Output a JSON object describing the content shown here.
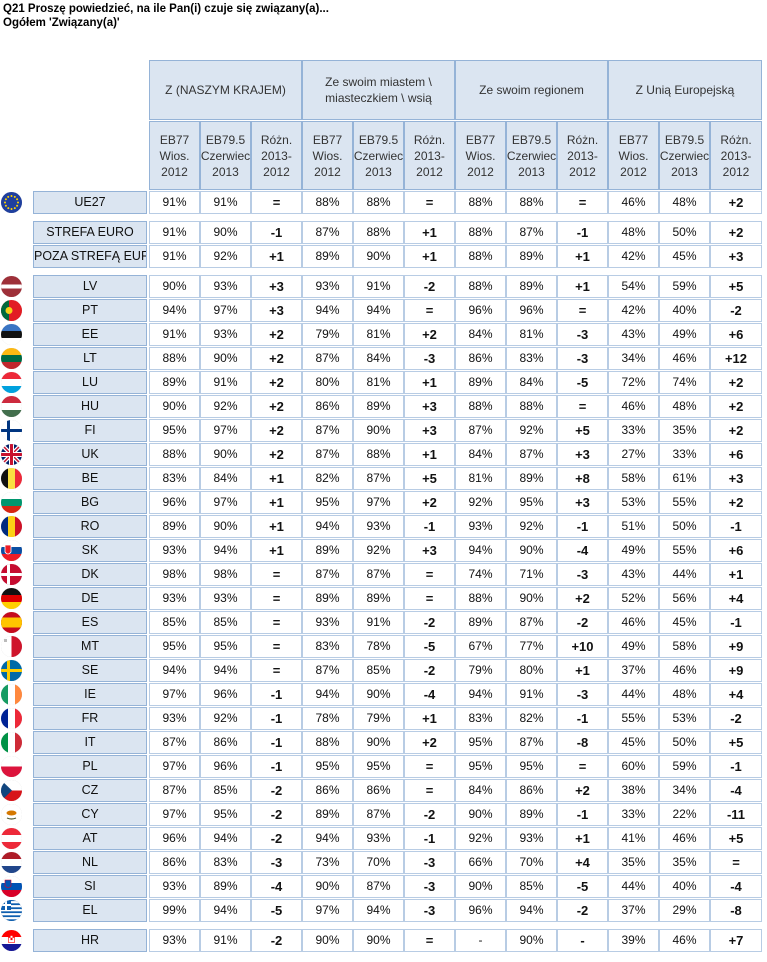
{
  "title": {
    "line1": "Q21 Proszę powiedzieć, na ile Pan(i) czuje się związany(a)...",
    "line2": "Ogółem 'Związany(a)'"
  },
  "groups": [
    {
      "label": "Z (NASZYM KRAJEM)"
    },
    {
      "label": "Ze swoim miastem \\ miasteczkiem \\ wsią"
    },
    {
      "label": "Ze swoim regionem"
    },
    {
      "label": "Z Unią Europejską"
    }
  ],
  "subheaders": [
    "EB77 Wios. 2012",
    "EB79.5 Czerwiec 2013",
    "Różn. 2013-2012"
  ],
  "rows": [
    {
      "label": "UE27",
      "flag": "eu",
      "v": [
        "91%",
        "91%",
        "=",
        "88%",
        "88%",
        "=",
        "88%",
        "88%",
        "=",
        "46%",
        "48%",
        "+2"
      ]
    },
    {
      "gap": true
    },
    {
      "label": "STREFA EURO",
      "flag": "",
      "v": [
        "91%",
        "90%",
        "-1",
        "87%",
        "88%",
        "+1",
        "88%",
        "87%",
        "-1",
        "48%",
        "50%",
        "+2"
      ]
    },
    {
      "label": "POZA STREFĄ EURO",
      "flag": "",
      "v": [
        "91%",
        "92%",
        "+1",
        "89%",
        "90%",
        "+1",
        "88%",
        "89%",
        "+1",
        "42%",
        "45%",
        "+3"
      ]
    },
    {
      "gap": true
    },
    {
      "label": "LV",
      "flag": "lv",
      "v": [
        "90%",
        "93%",
        "+3",
        "93%",
        "91%",
        "-2",
        "88%",
        "89%",
        "+1",
        "54%",
        "59%",
        "+5"
      ]
    },
    {
      "label": "PT",
      "flag": "pt",
      "v": [
        "94%",
        "97%",
        "+3",
        "94%",
        "94%",
        "=",
        "96%",
        "96%",
        "=",
        "42%",
        "40%",
        "-2"
      ]
    },
    {
      "label": "EE",
      "flag": "ee",
      "v": [
        "91%",
        "93%",
        "+2",
        "79%",
        "81%",
        "+2",
        "84%",
        "81%",
        "-3",
        "43%",
        "49%",
        "+6"
      ]
    },
    {
      "label": "LT",
      "flag": "lt",
      "v": [
        "88%",
        "90%",
        "+2",
        "87%",
        "84%",
        "-3",
        "86%",
        "83%",
        "-3",
        "34%",
        "46%",
        "+12"
      ]
    },
    {
      "label": "LU",
      "flag": "lu",
      "v": [
        "89%",
        "91%",
        "+2",
        "80%",
        "81%",
        "+1",
        "89%",
        "84%",
        "-5",
        "72%",
        "74%",
        "+2"
      ]
    },
    {
      "label": "HU",
      "flag": "hu",
      "v": [
        "90%",
        "92%",
        "+2",
        "86%",
        "89%",
        "+3",
        "88%",
        "88%",
        "=",
        "46%",
        "48%",
        "+2"
      ]
    },
    {
      "label": "FI",
      "flag": "fi",
      "v": [
        "95%",
        "97%",
        "+2",
        "87%",
        "90%",
        "+3",
        "87%",
        "92%",
        "+5",
        "33%",
        "35%",
        "+2"
      ]
    },
    {
      "label": "UK",
      "flag": "uk",
      "v": [
        "88%",
        "90%",
        "+2",
        "87%",
        "88%",
        "+1",
        "84%",
        "87%",
        "+3",
        "27%",
        "33%",
        "+6"
      ]
    },
    {
      "label": "BE",
      "flag": "be",
      "v": [
        "83%",
        "84%",
        "+1",
        "82%",
        "87%",
        "+5",
        "81%",
        "89%",
        "+8",
        "58%",
        "61%",
        "+3"
      ]
    },
    {
      "label": "BG",
      "flag": "bg",
      "v": [
        "96%",
        "97%",
        "+1",
        "95%",
        "97%",
        "+2",
        "92%",
        "95%",
        "+3",
        "53%",
        "55%",
        "+2"
      ]
    },
    {
      "label": "RO",
      "flag": "ro",
      "v": [
        "89%",
        "90%",
        "+1",
        "94%",
        "93%",
        "-1",
        "93%",
        "92%",
        "-1",
        "51%",
        "50%",
        "-1"
      ]
    },
    {
      "label": "SK",
      "flag": "sk",
      "v": [
        "93%",
        "94%",
        "+1",
        "89%",
        "92%",
        "+3",
        "94%",
        "90%",
        "-4",
        "49%",
        "55%",
        "+6"
      ]
    },
    {
      "label": "DK",
      "flag": "dk",
      "v": [
        "98%",
        "98%",
        "=",
        "87%",
        "87%",
        "=",
        "74%",
        "71%",
        "-3",
        "43%",
        "44%",
        "+1"
      ]
    },
    {
      "label": "DE",
      "flag": "de",
      "v": [
        "93%",
        "93%",
        "=",
        "89%",
        "89%",
        "=",
        "88%",
        "90%",
        "+2",
        "52%",
        "56%",
        "+4"
      ]
    },
    {
      "label": "ES",
      "flag": "es",
      "v": [
        "85%",
        "85%",
        "=",
        "93%",
        "91%",
        "-2",
        "89%",
        "87%",
        "-2",
        "46%",
        "45%",
        "-1"
      ]
    },
    {
      "label": "MT",
      "flag": "mt",
      "v": [
        "95%",
        "95%",
        "=",
        "83%",
        "78%",
        "-5",
        "67%",
        "77%",
        "+10",
        "49%",
        "58%",
        "+9"
      ]
    },
    {
      "label": "SE",
      "flag": "se",
      "v": [
        "94%",
        "94%",
        "=",
        "87%",
        "85%",
        "-2",
        "79%",
        "80%",
        "+1",
        "37%",
        "46%",
        "+9"
      ]
    },
    {
      "label": "IE",
      "flag": "ie",
      "v": [
        "97%",
        "96%",
        "-1",
        "94%",
        "90%",
        "-4",
        "94%",
        "91%",
        "-3",
        "44%",
        "48%",
        "+4"
      ]
    },
    {
      "label": "FR",
      "flag": "fr",
      "v": [
        "93%",
        "92%",
        "-1",
        "78%",
        "79%",
        "+1",
        "83%",
        "82%",
        "-1",
        "55%",
        "53%",
        "-2"
      ]
    },
    {
      "label": "IT",
      "flag": "it",
      "v": [
        "87%",
        "86%",
        "-1",
        "88%",
        "90%",
        "+2",
        "95%",
        "87%",
        "-8",
        "45%",
        "50%",
        "+5"
      ]
    },
    {
      "label": "PL",
      "flag": "pl",
      "v": [
        "97%",
        "96%",
        "-1",
        "95%",
        "95%",
        "=",
        "95%",
        "95%",
        "=",
        "60%",
        "59%",
        "-1"
      ]
    },
    {
      "label": "CZ",
      "flag": "cz",
      "v": [
        "87%",
        "85%",
        "-2",
        "86%",
        "86%",
        "=",
        "84%",
        "86%",
        "+2",
        "38%",
        "34%",
        "-4"
      ]
    },
    {
      "label": "CY",
      "flag": "cy",
      "v": [
        "97%",
        "95%",
        "-2",
        "89%",
        "87%",
        "-2",
        "90%",
        "89%",
        "-1",
        "33%",
        "22%",
        "-11"
      ]
    },
    {
      "label": "AT",
      "flag": "at",
      "v": [
        "96%",
        "94%",
        "-2",
        "94%",
        "93%",
        "-1",
        "92%",
        "93%",
        "+1",
        "41%",
        "46%",
        "+5"
      ]
    },
    {
      "label": "NL",
      "flag": "nl",
      "v": [
        "86%",
        "83%",
        "-3",
        "73%",
        "70%",
        "-3",
        "66%",
        "70%",
        "+4",
        "35%",
        "35%",
        "="
      ]
    },
    {
      "label": "SI",
      "flag": "si",
      "v": [
        "93%",
        "89%",
        "-4",
        "90%",
        "87%",
        "-3",
        "90%",
        "85%",
        "-5",
        "44%",
        "40%",
        "-4"
      ]
    },
    {
      "label": "EL",
      "flag": "gr",
      "v": [
        "99%",
        "94%",
        "-5",
        "97%",
        "94%",
        "-3",
        "96%",
        "94%",
        "-2",
        "37%",
        "29%",
        "-8"
      ]
    },
    {
      "gap": true
    },
    {
      "label": "HR",
      "flag": "hr",
      "v": [
        "93%",
        "91%",
        "-2",
        "90%",
        "90%",
        "=",
        "-",
        "90%",
        "-",
        "39%",
        "46%",
        "+7"
      ]
    }
  ]
}
